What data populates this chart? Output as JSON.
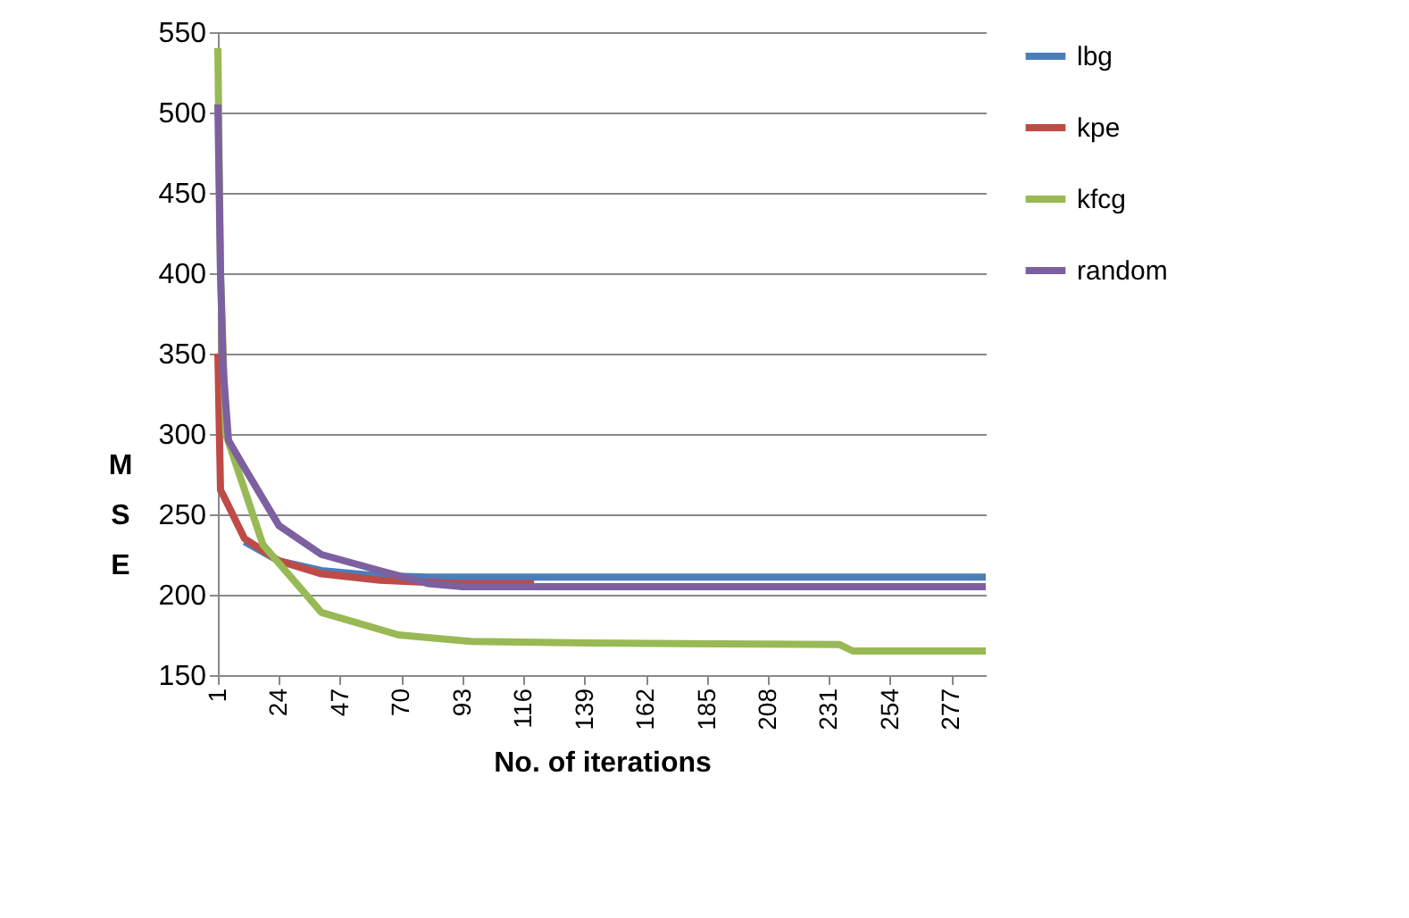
{
  "chart_data": {
    "type": "line",
    "xlabel": "No. of iterations",
    "ylabel": "M\nS\nE",
    "xlim": [
      1,
      290
    ],
    "xticks": [
      1,
      24,
      47,
      70,
      93,
      116,
      139,
      162,
      185,
      208,
      231,
      254,
      277
    ],
    "ylim": [
      150,
      550
    ],
    "yticks": [
      150,
      200,
      250,
      300,
      350,
      400,
      450,
      500,
      550
    ],
    "grid": "y",
    "legend": "right",
    "line_style": "solid",
    "marker": "none",
    "series": [
      {
        "name": "lbg",
        "color": "#4a7ebb",
        "x": [
          11,
          24,
          40,
          60,
          80,
          120,
          200,
          290
        ],
        "values": [
          233,
          221,
          215,
          212,
          211,
          211,
          211,
          211
        ]
      },
      {
        "name": "kpe",
        "color": "#be4b48",
        "x": [
          1,
          2,
          3,
          11,
          24,
          40,
          62,
          90,
          120
        ],
        "values": [
          350,
          265,
          262,
          235,
          221,
          213,
          209,
          207,
          207
        ]
      },
      {
        "name": "kfcg",
        "color": "#98b954",
        "x": [
          1,
          2,
          4,
          18,
          40,
          69,
          96,
          140,
          235,
          240,
          290
        ],
        "values": [
          540,
          400,
          300,
          231,
          189,
          175,
          171,
          170,
          169,
          165,
          165
        ]
      },
      {
        "name": "random",
        "color": "#7d60a0",
        "x": [
          1,
          2,
          3,
          5,
          11,
          24,
          40,
          62,
          80,
          93,
          200,
          290
        ],
        "values": [
          505,
          400,
          340,
          296,
          279,
          243,
          225,
          215,
          207,
          205,
          205,
          205
        ]
      }
    ]
  }
}
